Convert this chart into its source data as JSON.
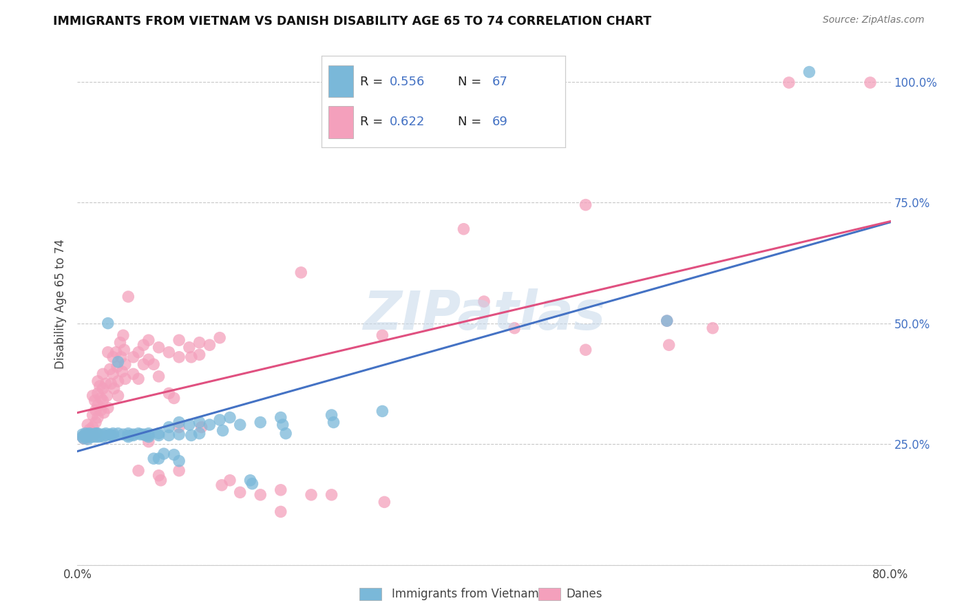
{
  "title": "IMMIGRANTS FROM VIETNAM VS DANISH DISABILITY AGE 65 TO 74 CORRELATION CHART",
  "source": "Source: ZipAtlas.com",
  "ylabel": "Disability Age 65 to 74",
  "xlim": [
    0.0,
    0.8
  ],
  "ylim": [
    0.0,
    1.08
  ],
  "xtick_positions": [
    0.0,
    0.1,
    0.2,
    0.3,
    0.4,
    0.5,
    0.6,
    0.7,
    0.8
  ],
  "xticklabels": [
    "0.0%",
    "",
    "",
    "",
    "",
    "",
    "",
    "",
    "80.0%"
  ],
  "ytick_positions": [
    0.0,
    0.25,
    0.5,
    0.75,
    1.0
  ],
  "yticklabels": [
    "",
    "25.0%",
    "50.0%",
    "75.0%",
    "100.0%"
  ],
  "blue_color": "#7ab8d9",
  "pink_color": "#f4a0bc",
  "line_blue": "#4472C4",
  "line_pink": "#e05080",
  "blue_scatter": [
    [
      0.005,
      0.27
    ],
    [
      0.005,
      0.265
    ],
    [
      0.006,
      0.262
    ],
    [
      0.007,
      0.268
    ],
    [
      0.008,
      0.272
    ],
    [
      0.009,
      0.265
    ],
    [
      0.01,
      0.27
    ],
    [
      0.01,
      0.265
    ],
    [
      0.01,
      0.26
    ],
    [
      0.011,
      0.268
    ],
    [
      0.012,
      0.272
    ],
    [
      0.012,
      0.265
    ],
    [
      0.013,
      0.268
    ],
    [
      0.014,
      0.27
    ],
    [
      0.014,
      0.265
    ],
    [
      0.015,
      0.268
    ],
    [
      0.015,
      0.265
    ],
    [
      0.016,
      0.27
    ],
    [
      0.017,
      0.268
    ],
    [
      0.018,
      0.265
    ],
    [
      0.018,
      0.272
    ],
    [
      0.019,
      0.268
    ],
    [
      0.02,
      0.272
    ],
    [
      0.02,
      0.268
    ],
    [
      0.021,
      0.265
    ],
    [
      0.022,
      0.268
    ],
    [
      0.025,
      0.27
    ],
    [
      0.025,
      0.265
    ],
    [
      0.028,
      0.272
    ],
    [
      0.028,
      0.268
    ],
    [
      0.03,
      0.5
    ],
    [
      0.032,
      0.27
    ],
    [
      0.033,
      0.268
    ],
    [
      0.035,
      0.272
    ],
    [
      0.035,
      0.268
    ],
    [
      0.04,
      0.42
    ],
    [
      0.04,
      0.272
    ],
    [
      0.045,
      0.27
    ],
    [
      0.05,
      0.272
    ],
    [
      0.05,
      0.268
    ],
    [
      0.05,
      0.265
    ],
    [
      0.055,
      0.27
    ],
    [
      0.055,
      0.268
    ],
    [
      0.06,
      0.272
    ],
    [
      0.062,
      0.27
    ],
    [
      0.065,
      0.27
    ],
    [
      0.067,
      0.268
    ],
    [
      0.07,
      0.272
    ],
    [
      0.07,
      0.268
    ],
    [
      0.07,
      0.265
    ],
    [
      0.075,
      0.22
    ],
    [
      0.08,
      0.272
    ],
    [
      0.08,
      0.268
    ],
    [
      0.08,
      0.22
    ],
    [
      0.085,
      0.23
    ],
    [
      0.09,
      0.285
    ],
    [
      0.09,
      0.268
    ],
    [
      0.095,
      0.228
    ],
    [
      0.1,
      0.295
    ],
    [
      0.1,
      0.27
    ],
    [
      0.1,
      0.215
    ],
    [
      0.11,
      0.29
    ],
    [
      0.112,
      0.268
    ],
    [
      0.12,
      0.295
    ],
    [
      0.12,
      0.272
    ],
    [
      0.13,
      0.29
    ],
    [
      0.14,
      0.3
    ],
    [
      0.143,
      0.278
    ],
    [
      0.15,
      0.305
    ],
    [
      0.16,
      0.29
    ],
    [
      0.17,
      0.175
    ],
    [
      0.172,
      0.168
    ],
    [
      0.18,
      0.295
    ],
    [
      0.2,
      0.305
    ],
    [
      0.202,
      0.29
    ],
    [
      0.205,
      0.272
    ],
    [
      0.25,
      0.31
    ],
    [
      0.252,
      0.295
    ],
    [
      0.3,
      0.318
    ],
    [
      0.58,
      0.505
    ],
    [
      0.72,
      1.02
    ]
  ],
  "pink_scatter": [
    [
      0.005,
      0.265
    ],
    [
      0.006,
      0.262
    ],
    [
      0.007,
      0.268
    ],
    [
      0.008,
      0.265
    ],
    [
      0.009,
      0.262
    ],
    [
      0.01,
      0.29
    ],
    [
      0.01,
      0.268
    ],
    [
      0.011,
      0.272
    ],
    [
      0.012,
      0.28
    ],
    [
      0.013,
      0.275
    ],
    [
      0.014,
      0.268
    ],
    [
      0.015,
      0.35
    ],
    [
      0.015,
      0.31
    ],
    [
      0.015,
      0.285
    ],
    [
      0.016,
      0.268
    ],
    [
      0.017,
      0.34
    ],
    [
      0.018,
      0.32
    ],
    [
      0.018,
      0.295
    ],
    [
      0.019,
      0.272
    ],
    [
      0.02,
      0.38
    ],
    [
      0.02,
      0.355
    ],
    [
      0.02,
      0.33
    ],
    [
      0.02,
      0.305
    ],
    [
      0.022,
      0.37
    ],
    [
      0.023,
      0.345
    ],
    [
      0.023,
      0.32
    ],
    [
      0.025,
      0.395
    ],
    [
      0.025,
      0.365
    ],
    [
      0.025,
      0.34
    ],
    [
      0.026,
      0.315
    ],
    [
      0.028,
      0.375
    ],
    [
      0.029,
      0.35
    ],
    [
      0.03,
      0.325
    ],
    [
      0.03,
      0.44
    ],
    [
      0.032,
      0.405
    ],
    [
      0.033,
      0.375
    ],
    [
      0.035,
      0.43
    ],
    [
      0.035,
      0.395
    ],
    [
      0.036,
      0.365
    ],
    [
      0.038,
      0.44
    ],
    [
      0.039,
      0.41
    ],
    [
      0.04,
      0.38
    ],
    [
      0.04,
      0.35
    ],
    [
      0.042,
      0.46
    ],
    [
      0.043,
      0.43
    ],
    [
      0.044,
      0.4
    ],
    [
      0.045,
      0.475
    ],
    [
      0.046,
      0.445
    ],
    [
      0.047,
      0.415
    ],
    [
      0.047,
      0.385
    ],
    [
      0.05,
      0.555
    ],
    [
      0.055,
      0.43
    ],
    [
      0.055,
      0.395
    ],
    [
      0.06,
      0.44
    ],
    [
      0.06,
      0.385
    ],
    [
      0.06,
      0.195
    ],
    [
      0.065,
      0.455
    ],
    [
      0.065,
      0.415
    ],
    [
      0.07,
      0.465
    ],
    [
      0.07,
      0.425
    ],
    [
      0.07,
      0.255
    ],
    [
      0.075,
      0.415
    ],
    [
      0.08,
      0.45
    ],
    [
      0.08,
      0.39
    ],
    [
      0.08,
      0.185
    ],
    [
      0.082,
      0.175
    ],
    [
      0.09,
      0.44
    ],
    [
      0.09,
      0.355
    ],
    [
      0.095,
      0.345
    ],
    [
      0.1,
      0.465
    ],
    [
      0.1,
      0.43
    ],
    [
      0.1,
      0.285
    ],
    [
      0.1,
      0.195
    ],
    [
      0.11,
      0.45
    ],
    [
      0.112,
      0.43
    ],
    [
      0.12,
      0.46
    ],
    [
      0.12,
      0.435
    ],
    [
      0.122,
      0.285
    ],
    [
      0.13,
      0.455
    ],
    [
      0.14,
      0.47
    ],
    [
      0.142,
      0.165
    ],
    [
      0.15,
      0.175
    ],
    [
      0.16,
      0.15
    ],
    [
      0.18,
      0.145
    ],
    [
      0.2,
      0.11
    ],
    [
      0.22,
      0.605
    ],
    [
      0.23,
      0.145
    ],
    [
      0.25,
      0.145
    ],
    [
      0.3,
      0.475
    ],
    [
      0.302,
      0.13
    ],
    [
      0.38,
      0.695
    ],
    [
      0.4,
      0.545
    ],
    [
      0.43,
      0.49
    ],
    [
      0.5,
      0.445
    ],
    [
      0.58,
      0.505
    ],
    [
      0.582,
      0.455
    ],
    [
      0.625,
      0.49
    ],
    [
      0.7,
      0.998
    ],
    [
      0.78,
      0.998
    ],
    [
      0.5,
      0.745
    ],
    [
      0.2,
      0.155
    ]
  ],
  "watermark": "ZIPatlas",
  "background_color": "#ffffff",
  "grid_color": "#c8c8c8",
  "label_color_blue": "#4472C4",
  "bottom_legend_labels": [
    "Immigrants from Vietnam",
    "Danes"
  ]
}
